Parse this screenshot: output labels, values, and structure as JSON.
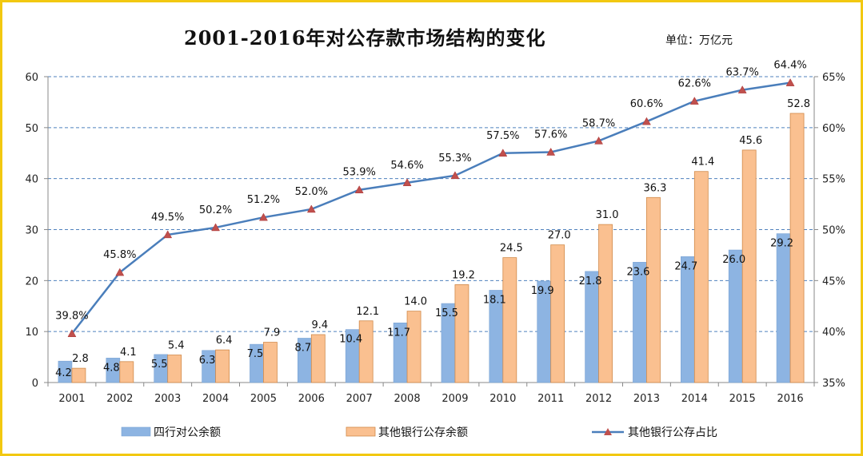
{
  "title": "2001-2016年对公存款市场结构的变化",
  "unit": "单位：万亿元",
  "chart_data": {
    "type": "bar+line",
    "categories": [
      "2001",
      "2002",
      "2003",
      "2004",
      "2005",
      "2006",
      "2007",
      "2008",
      "2009",
      "2010",
      "2011",
      "2012",
      "2013",
      "2014",
      "2015",
      "2016"
    ],
    "series": [
      {
        "name": "四行对公余额",
        "type": "bar",
        "axis": "left",
        "color": "#8db4e2",
        "values": [
          4.2,
          4.8,
          5.5,
          6.3,
          7.5,
          8.7,
          10.4,
          11.7,
          15.5,
          18.1,
          19.9,
          21.8,
          23.6,
          24.7,
          26.0,
          29.2
        ],
        "labels": [
          "4.2",
          "4.8",
          "5.5",
          "6.3",
          "7.5",
          "8.7",
          "10.4",
          "11.7",
          "15.5",
          "18.1",
          "19.9",
          "21.8",
          "23.6",
          "24.7",
          "26.0",
          "29.2"
        ]
      },
      {
        "name": "其他银行公存余额",
        "type": "bar",
        "axis": "left",
        "color": "#fac090",
        "values": [
          2.8,
          4.1,
          5.4,
          6.4,
          7.9,
          9.4,
          12.1,
          14.0,
          19.2,
          24.5,
          27.0,
          31.0,
          36.3,
          41.4,
          45.6,
          52.8
        ],
        "labels": [
          "2.8",
          "4.1",
          "5.4",
          "6.4",
          "7.9",
          "9.4",
          "12.1",
          "14.0",
          "19.2",
          "24.5",
          "27.0",
          "31.0",
          "36.3",
          "41.4",
          "45.6",
          "52.8"
        ]
      },
      {
        "name": "其他银行公存占比",
        "type": "line",
        "axis": "right",
        "color": "#4a7ebb",
        "marker_color": "#c0504d",
        "values": [
          39.8,
          45.8,
          49.5,
          50.2,
          51.2,
          52.0,
          53.9,
          54.6,
          55.3,
          57.5,
          57.6,
          58.7,
          60.6,
          62.6,
          63.7,
          64.4
        ],
        "labels": [
          "39.8%",
          "45.8%",
          "49.5%",
          "50.2%",
          "51.2%",
          "52.0%",
          "53.9%",
          "54.6%",
          "55.3%",
          "57.5%",
          "57.6%",
          "58.7%",
          "60.6%",
          "62.6%",
          "63.7%",
          "64.4%"
        ]
      }
    ],
    "y_left": {
      "min": 0,
      "max": 60,
      "ticks": [
        "0",
        "10",
        "20",
        "30",
        "40",
        "50",
        "60"
      ]
    },
    "y_right": {
      "min": 35,
      "max": 65,
      "ticks": [
        "35%",
        "40%",
        "45%",
        "50%",
        "55%",
        "60%",
        "65%"
      ]
    },
    "grid": "dashed horizontal",
    "legend": "bottom"
  }
}
